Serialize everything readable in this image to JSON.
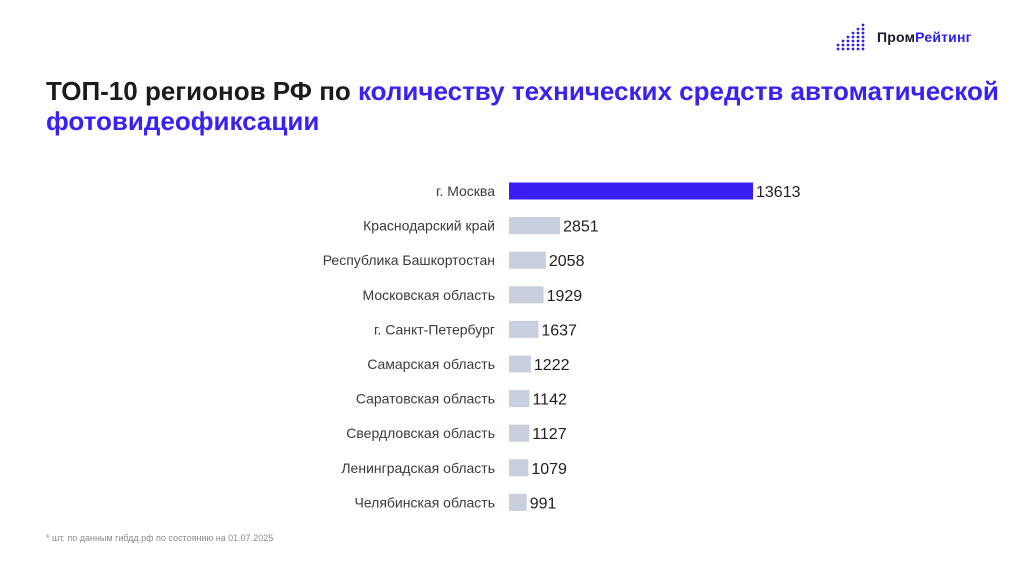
{
  "logo": {
    "part1": "Пром",
    "part2": "Рейтинг"
  },
  "title": {
    "part1": "ТОП-10 регионов РФ по ",
    "part2": "количеству технических средств автоматической фотовидеофиксации"
  },
  "footnote": "* шт. по данным гибдд.рф по состоянию на 01.07.2025",
  "colors": {
    "highlight": "#3a1ff5",
    "bar": "#c8cfde",
    "label": "#3a3a44",
    "value": "#1f1f24"
  },
  "chart_data": {
    "type": "bar",
    "orientation": "horizontal",
    "categories": [
      "г. Москва",
      "Краснодарский край",
      "Республика Башкортостан",
      "Московская область",
      "г. Санкт-Петербург",
      "Самарская область",
      "Саратовская область",
      "Свердловская область",
      "Ленинградская область",
      "Челябинская область"
    ],
    "values": [
      13613,
      2851,
      2058,
      1929,
      1637,
      1222,
      1142,
      1127,
      1079,
      991
    ],
    "value_labels": [
      "13613",
      "2851",
      "2058",
      "1929",
      "1637",
      "1222",
      "1142",
      "1127",
      "1079",
      "991"
    ],
    "highlight_index": 0,
    "xlim": [
      0,
      13613
    ],
    "grid": false,
    "legend": "none"
  }
}
